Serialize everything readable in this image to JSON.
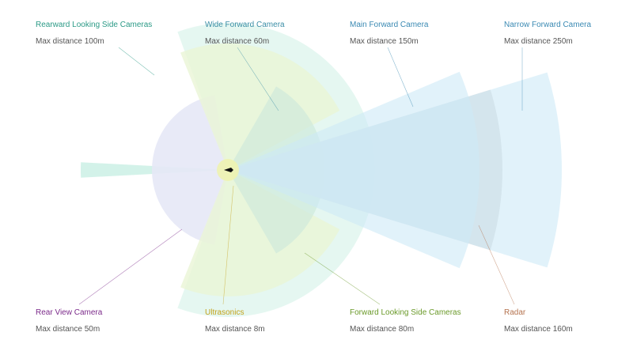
{
  "labels": [
    {
      "title": "Rearward Looking Side Cameras",
      "subtitle": "Max distance 100m"
    },
    {
      "title": "Wide Forward Camera",
      "subtitle": "Max distance 60m"
    },
    {
      "title": "Main Forward Camera",
      "subtitle": "Max distance 150m"
    },
    {
      "title": "Narrow Forward Camera",
      "subtitle": "Max distance 250m"
    },
    {
      "title": "Rear View Camera",
      "subtitle": "Max distance 50m"
    },
    {
      "title": "Ultrasonics",
      "subtitle": "Max distance 8m"
    },
    {
      "title": "Forward Looking Side Cameras",
      "subtitle": "Max distance 80m"
    },
    {
      "title": "Radar",
      "subtitle": "Max distance 160m"
    }
  ]
}
